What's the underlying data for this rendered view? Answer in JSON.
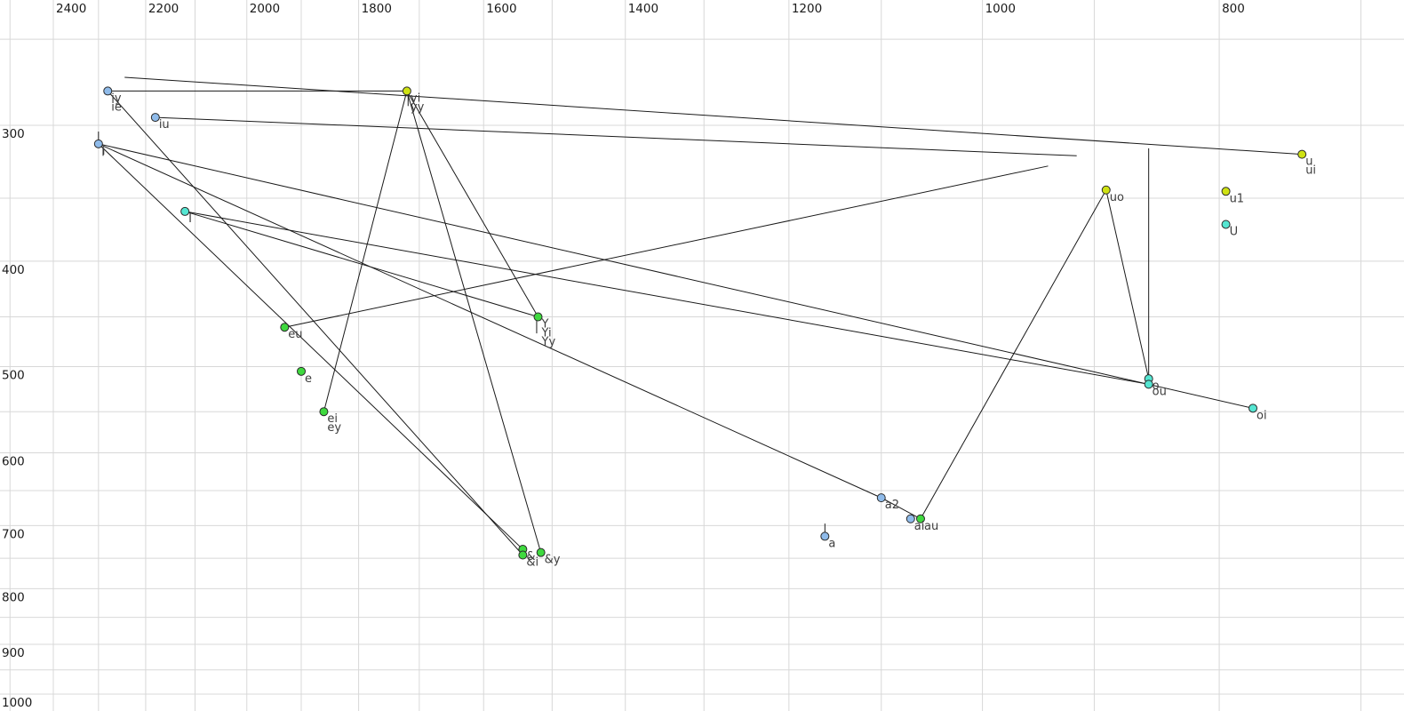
{
  "chart_data": {
    "type": "scatter",
    "description": "Vowel formant plot: F2 (Hz) on horizontal axis reversed log scale, F1 (Hz) on vertical axis increasing downward log scale. Points are vowels/diphthongs, line segments connect related tokens.",
    "x_axis": {
      "unit": "Hz",
      "tick_labels": [
        2400,
        2200,
        2000,
        1800,
        1600,
        1400,
        1200,
        1000,
        800
      ],
      "gridlines": [
        2500,
        2400,
        2300,
        2200,
        2100,
        2000,
        1900,
        1800,
        1700,
        1600,
        1500,
        1400,
        1300,
        1200,
        1100,
        1000,
        900,
        800,
        700
      ],
      "scale": "log",
      "direction": "reversed"
    },
    "y_axis": {
      "unit": "Hz",
      "tick_labels": [
        300,
        400,
        500,
        600,
        700,
        800,
        900,
        1000
      ],
      "gridlines": [
        250,
        300,
        350,
        400,
        450,
        500,
        550,
        600,
        650,
        700,
        750,
        800,
        850,
        900,
        950,
        1000
      ],
      "scale": "log",
      "direction": "downward"
    },
    "colors": {
      "blue": "#8fbbea",
      "cyan": "#55e6d2",
      "green": "#3fd93f",
      "yellow": "#cfe213",
      "dot_outline": "#2a2a2a",
      "line": "#1a1a1a",
      "grid": "#d8d8d8",
      "axis_text": "#1a1a1a",
      "label_text": "#3d3d3d"
    },
    "points": [
      {
        "id": "iy",
        "f2": 2280,
        "f1": 279,
        "color": "blue",
        "labels": [
          "iy",
          "ie"
        ]
      },
      {
        "id": "iu",
        "f2": 2180,
        "f1": 295,
        "color": "blue",
        "labels": [
          "iu"
        ]
      },
      {
        "id": "i",
        "f2": 2300,
        "f1": 312,
        "color": "blue",
        "labels": [
          "i"
        ]
      },
      {
        "id": "I",
        "f2": 2120,
        "f1": 360,
        "color": "cyan",
        "labels": [
          "I"
        ]
      },
      {
        "id": "eu",
        "f2": 1930,
        "f1": 460,
        "color": "green",
        "labels": [
          "eu"
        ]
      },
      {
        "id": "e",
        "f2": 1900,
        "f1": 505,
        "color": "green",
        "labels": [
          "e"
        ]
      },
      {
        "id": "ei",
        "f2": 1860,
        "f1": 550,
        "color": "green",
        "labels": [
          "ei",
          "ey"
        ]
      },
      {
        "id": "yi",
        "f2": 1720,
        "f1": 279,
        "color": "yellow",
        "labels": [
          "yi",
          "yy"
        ]
      },
      {
        "id": "Y",
        "f2": 1520,
        "f1": 450,
        "color": "green",
        "labels": [
          "Y",
          "Yi",
          "Yy"
        ]
      },
      {
        "id": "&",
        "f2": 1542,
        "f1": 736,
        "color": "green",
        "labels": [
          "&"
        ]
      },
      {
        "id": "&i",
        "f2": 1542,
        "f1": 745,
        "color": "green",
        "labels": [
          "&i"
        ]
      },
      {
        "id": "&y",
        "f2": 1516,
        "f1": 741,
        "color": "green",
        "labels": [
          "&y"
        ]
      },
      {
        "id": "a2",
        "f2": 1100,
        "f1": 660,
        "color": "blue",
        "labels": [
          "a2"
        ]
      },
      {
        "id": "ai",
        "f2": 1070,
        "f1": 690,
        "color": "blue",
        "labels": [
          "ai"
        ]
      },
      {
        "id": "au",
        "f2": 1060,
        "f1": 690,
        "color": "green",
        "labels": [
          "au"
        ]
      },
      {
        "id": "a",
        "f2": 1160,
        "f1": 716,
        "color": "blue",
        "labels": [
          "a"
        ]
      },
      {
        "id": "uo",
        "f2": 890,
        "f1": 344,
        "color": "yellow",
        "labels": [
          "uo"
        ]
      },
      {
        "id": "u",
        "f2": 740,
        "f1": 319,
        "color": "yellow",
        "labels": [
          "u",
          "ui"
        ]
      },
      {
        "id": "u1",
        "f2": 795,
        "f1": 345,
        "color": "yellow",
        "labels": [
          "u1"
        ]
      },
      {
        "id": "U",
        "f2": 795,
        "f1": 370,
        "color": "cyan",
        "labels": [
          "U"
        ]
      },
      {
        "id": "o",
        "f2": 855,
        "f1": 513,
        "color": "cyan",
        "labels": [
          "o"
        ]
      },
      {
        "id": "ou",
        "f2": 855,
        "f1": 519,
        "color": "cyan",
        "labels": [
          "ou"
        ]
      },
      {
        "id": "oi",
        "f2": 775,
        "f1": 546,
        "color": "cyan",
        "labels": [
          "oi"
        ]
      }
    ],
    "lines": [
      {
        "from": "iy",
        "to": "yi"
      },
      {
        "from": [
          2244,
          271
        ],
        "to": "u"
      },
      {
        "from": "iu",
        "to": [
          915,
          320
        ]
      },
      {
        "from": "eu",
        "to": [
          940,
          327
        ]
      },
      {
        "from": "i",
        "to": "oi"
      },
      {
        "from": "I",
        "to": "ou"
      },
      {
        "from": "iy",
        "to": "&i"
      },
      {
        "from": "i",
        "to": "&"
      },
      {
        "from": "yi",
        "to": "&y"
      },
      {
        "from": "yi",
        "to": "ei"
      },
      {
        "from": "yi",
        "to": "Y"
      },
      {
        "from": "I",
        "to": "Y"
      },
      {
        "from": "i",
        "to": "a2"
      },
      {
        "from": "a2",
        "to": "au"
      },
      {
        "from": "au",
        "to": "uo"
      },
      {
        "from": "uo",
        "to": "o"
      },
      {
        "from": [
          855,
          315
        ],
        "to": "o"
      },
      {
        "from": [
          2300,
          304
        ],
        "to": [
          2300,
          310
        ]
      },
      {
        "from": [
          2290,
          314
        ],
        "to": [
          2290,
          320
        ]
      },
      {
        "from": [
          1160,
          697
        ],
        "to": [
          1160,
          710
        ]
      },
      {
        "from": [
          1522,
          452
        ],
        "to": [
          1522,
          466
        ]
      },
      {
        "from": [
          1718,
          282
        ],
        "to": [
          1718,
          288
        ]
      }
    ]
  }
}
